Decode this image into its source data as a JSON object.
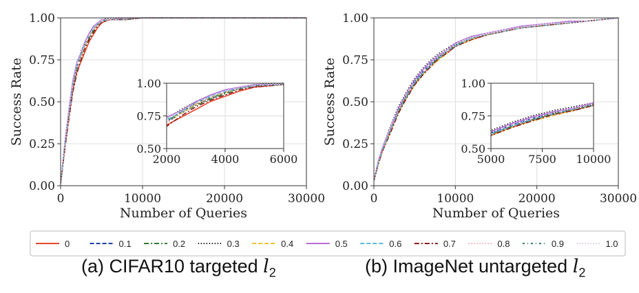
{
  "chart_data": [
    {
      "type": "line",
      "caption": "(a) CIFAR10 targeted",
      "caption_symbol": "l",
      "caption_sub": "2",
      "xlabel": "Number of Queries",
      "ylabel": "Success Rate",
      "xlim": [
        0,
        30000
      ],
      "ylim": [
        0,
        1
      ],
      "xticks": [
        "0",
        "10000",
        "20000",
        "30000"
      ],
      "yticks": [
        "0.00",
        "0.25",
        "0.50",
        "0.75",
        "1.00"
      ],
      "grid": true,
      "x": [
        0,
        500,
        1000,
        1500,
        2000,
        2500,
        3000,
        3500,
        4000,
        4500,
        5000,
        6000,
        8000,
        10000,
        15000,
        20000,
        25000,
        30000
      ],
      "series": [
        {
          "name": "0",
          "values": [
            0.01,
            0.22,
            0.4,
            0.57,
            0.68,
            0.74,
            0.8,
            0.86,
            0.9,
            0.94,
            0.97,
            0.99,
            0.99,
            1.0,
            1.0,
            1.0,
            1.0,
            1.0
          ]
        },
        {
          "name": "0.1",
          "values": [
            0.01,
            0.22,
            0.41,
            0.59,
            0.71,
            0.78,
            0.84,
            0.88,
            0.93,
            0.96,
            0.98,
            0.99,
            0.99,
            1.0,
            1.0,
            1.0,
            1.0,
            1.0
          ]
        },
        {
          "name": "0.2",
          "values": [
            0.01,
            0.21,
            0.4,
            0.58,
            0.7,
            0.77,
            0.83,
            0.88,
            0.92,
            0.96,
            0.98,
            0.99,
            0.99,
            1.0,
            1.0,
            1.0,
            1.0,
            1.0
          ]
        },
        {
          "name": "0.3",
          "values": [
            0.01,
            0.24,
            0.43,
            0.61,
            0.73,
            0.8,
            0.86,
            0.9,
            0.94,
            0.97,
            0.99,
            1.0,
            1.0,
            1.0,
            1.0,
            1.0,
            1.0,
            1.0
          ]
        },
        {
          "name": "0.4",
          "values": [
            0.01,
            0.22,
            0.41,
            0.6,
            0.72,
            0.77,
            0.84,
            0.89,
            0.93,
            0.96,
            0.98,
            0.99,
            0.99,
            1.0,
            1.0,
            1.0,
            1.0,
            1.0
          ]
        },
        {
          "name": "0.5",
          "values": [
            0.01,
            0.25,
            0.45,
            0.63,
            0.74,
            0.79,
            0.86,
            0.91,
            0.95,
            0.97,
            0.99,
            0.99,
            1.0,
            1.0,
            1.0,
            1.0,
            1.0,
            1.0
          ]
        },
        {
          "name": "0.6",
          "values": [
            0.01,
            0.23,
            0.42,
            0.6,
            0.72,
            0.78,
            0.85,
            0.9,
            0.94,
            0.96,
            0.98,
            0.99,
            0.99,
            1.0,
            1.0,
            1.0,
            1.0,
            1.0
          ]
        },
        {
          "name": "0.7",
          "values": [
            0.01,
            0.21,
            0.39,
            0.56,
            0.67,
            0.75,
            0.82,
            0.87,
            0.91,
            0.95,
            0.97,
            0.99,
            0.99,
            1.0,
            1.0,
            1.0,
            1.0,
            1.0
          ]
        },
        {
          "name": "0.8",
          "values": [
            0.01,
            0.22,
            0.41,
            0.59,
            0.7,
            0.77,
            0.84,
            0.89,
            0.93,
            0.96,
            0.98,
            0.99,
            0.99,
            1.0,
            1.0,
            1.0,
            1.0,
            1.0
          ]
        },
        {
          "name": "0.9",
          "values": [
            0.01,
            0.23,
            0.42,
            0.6,
            0.71,
            0.78,
            0.85,
            0.89,
            0.93,
            0.96,
            0.98,
            0.99,
            0.99,
            1.0,
            1.0,
            1.0,
            1.0,
            1.0
          ]
        },
        {
          "name": "1.0",
          "values": [
            0.01,
            0.24,
            0.44,
            0.62,
            0.73,
            0.79,
            0.85,
            0.9,
            0.94,
            0.97,
            0.99,
            0.99,
            1.0,
            1.0,
            1.0,
            1.0,
            1.0,
            1.0
          ]
        }
      ],
      "inset": {
        "xlim": [
          2000,
          6000
        ],
        "ylim": [
          0.5,
          1.0
        ],
        "xticks": [
          "2000",
          "4000",
          "6000"
        ],
        "yticks": [
          "0.50",
          "0.75",
          "1.00"
        ]
      }
    },
    {
      "type": "line",
      "caption": "(b) ImageNet untargeted",
      "caption_symbol": "l",
      "caption_sub": "2",
      "xlabel": "Number of Queries",
      "ylabel": "Success Rate",
      "xlim": [
        0,
        30000
      ],
      "ylim": [
        0,
        1
      ],
      "xticks": [
        "0",
        "10000",
        "20000",
        "30000"
      ],
      "yticks": [
        "0.00",
        "0.25",
        "0.50",
        "0.75",
        "1.00"
      ],
      "grid": true,
      "x": [
        0,
        500,
        1000,
        2000,
        3000,
        4000,
        5000,
        6000,
        7000,
        8000,
        9000,
        10000,
        12000,
        14000,
        16000,
        18000,
        20000,
        22000,
        24000,
        26000,
        28000,
        30000
      ],
      "series": [
        {
          "name": "0",
          "values": [
            0.03,
            0.13,
            0.2,
            0.32,
            0.44,
            0.53,
            0.6,
            0.66,
            0.72,
            0.76,
            0.79,
            0.83,
            0.87,
            0.9,
            0.92,
            0.94,
            0.95,
            0.96,
            0.97,
            0.98,
            0.99,
            1.0
          ]
        },
        {
          "name": "0.1",
          "values": [
            0.03,
            0.13,
            0.21,
            0.33,
            0.45,
            0.54,
            0.62,
            0.68,
            0.73,
            0.77,
            0.8,
            0.84,
            0.88,
            0.9,
            0.92,
            0.94,
            0.95,
            0.96,
            0.97,
            0.98,
            0.99,
            1.0
          ]
        },
        {
          "name": "0.2",
          "values": [
            0.03,
            0.12,
            0.2,
            0.32,
            0.44,
            0.54,
            0.61,
            0.67,
            0.72,
            0.77,
            0.8,
            0.84,
            0.88,
            0.9,
            0.92,
            0.94,
            0.95,
            0.96,
            0.97,
            0.98,
            0.99,
            1.0
          ]
        },
        {
          "name": "0.3",
          "values": [
            0.03,
            0.14,
            0.22,
            0.35,
            0.47,
            0.56,
            0.64,
            0.7,
            0.75,
            0.79,
            0.82,
            0.85,
            0.89,
            0.91,
            0.93,
            0.95,
            0.96,
            0.97,
            0.98,
            0.98,
            0.99,
            1.0
          ]
        },
        {
          "name": "0.4",
          "values": [
            0.03,
            0.12,
            0.2,
            0.32,
            0.43,
            0.52,
            0.6,
            0.66,
            0.71,
            0.75,
            0.79,
            0.83,
            0.87,
            0.9,
            0.92,
            0.94,
            0.95,
            0.96,
            0.97,
            0.98,
            0.99,
            1.0
          ]
        },
        {
          "name": "0.5",
          "values": [
            0.03,
            0.14,
            0.22,
            0.34,
            0.46,
            0.55,
            0.63,
            0.69,
            0.74,
            0.78,
            0.81,
            0.85,
            0.89,
            0.91,
            0.93,
            0.95,
            0.96,
            0.97,
            0.98,
            0.98,
            0.99,
            1.0
          ]
        },
        {
          "name": "0.6",
          "values": [
            0.03,
            0.13,
            0.21,
            0.33,
            0.44,
            0.53,
            0.61,
            0.67,
            0.72,
            0.76,
            0.8,
            0.83,
            0.88,
            0.9,
            0.92,
            0.94,
            0.95,
            0.96,
            0.97,
            0.98,
            0.99,
            1.0
          ]
        },
        {
          "name": "0.7",
          "values": [
            0.03,
            0.12,
            0.2,
            0.31,
            0.43,
            0.52,
            0.6,
            0.66,
            0.71,
            0.76,
            0.79,
            0.83,
            0.87,
            0.9,
            0.92,
            0.94,
            0.95,
            0.96,
            0.97,
            0.98,
            0.99,
            1.0
          ]
        },
        {
          "name": "0.8",
          "values": [
            0.03,
            0.13,
            0.21,
            0.33,
            0.45,
            0.54,
            0.62,
            0.68,
            0.73,
            0.77,
            0.8,
            0.84,
            0.88,
            0.9,
            0.92,
            0.94,
            0.95,
            0.96,
            0.97,
            0.98,
            0.99,
            1.0
          ]
        },
        {
          "name": "0.9",
          "values": [
            0.03,
            0.12,
            0.2,
            0.32,
            0.44,
            0.53,
            0.61,
            0.67,
            0.72,
            0.76,
            0.8,
            0.83,
            0.88,
            0.9,
            0.92,
            0.94,
            0.95,
            0.96,
            0.97,
            0.98,
            0.99,
            1.0
          ]
        },
        {
          "name": "1.0",
          "values": [
            0.03,
            0.13,
            0.21,
            0.34,
            0.45,
            0.55,
            0.62,
            0.68,
            0.73,
            0.77,
            0.81,
            0.84,
            0.88,
            0.91,
            0.93,
            0.94,
            0.96,
            0.97,
            0.97,
            0.98,
            0.99,
            1.0
          ]
        }
      ],
      "inset": {
        "xlim": [
          5000,
          10000
        ],
        "ylim": [
          0.5,
          1.0
        ],
        "xticks": [
          "5000",
          "7500",
          "10000"
        ],
        "yticks": [
          "0.50",
          "0.75",
          "1.00"
        ]
      }
    }
  ],
  "legend": {
    "placement": "bottom",
    "entries": [
      {
        "label": "0",
        "color": "#e8452c",
        "dash": "solid"
      },
      {
        "label": "0.1",
        "color": "#1f3fa8",
        "dash": "dashed"
      },
      {
        "label": "0.2",
        "color": "#2f7a2f",
        "dash": "dashdot"
      },
      {
        "label": "0.3",
        "color": "#222222",
        "dash": "dotted"
      },
      {
        "label": "0.4",
        "color": "#f2c230",
        "dash": "dashed"
      },
      {
        "label": "0.5",
        "color": "#b66dd9",
        "dash": "solid"
      },
      {
        "label": "0.6",
        "color": "#5ab8e0",
        "dash": "dashed"
      },
      {
        "label": "0.7",
        "color": "#8b1a1a",
        "dash": "dashdot"
      },
      {
        "label": "0.8",
        "color": "#f4a8b8",
        "dash": "dotted"
      },
      {
        "label": "0.9",
        "color": "#2e7d6b",
        "dash": "dashdotted"
      },
      {
        "label": "1.0",
        "color": "#d9c8e8",
        "dash": "dotted"
      }
    ]
  }
}
